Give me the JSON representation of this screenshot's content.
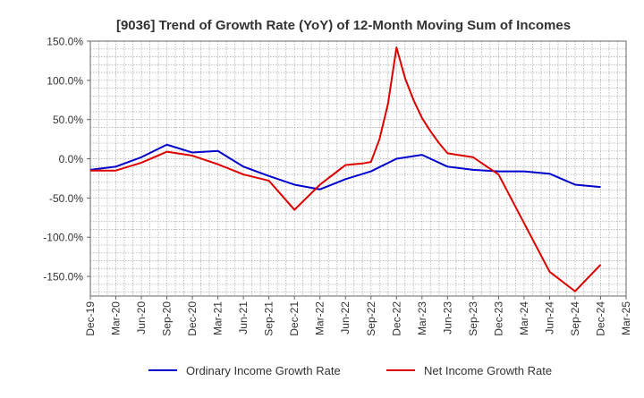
{
  "chart_data": {
    "type": "line",
    "title": "[9036]  Trend of Growth Rate (YoY) of 12-Month Moving Sum of Incomes",
    "xlabel": "",
    "ylabel": "",
    "ylim": [
      -175,
      150
    ],
    "y_ticks": [
      150,
      100,
      50,
      0,
      -50,
      -100,
      -150
    ],
    "y_tick_labels": [
      "150.0%",
      "100.0%",
      "50.0%",
      "0.0%",
      "-50.0%",
      "-100.0%",
      "-150.0%"
    ],
    "x_tick_labels": [
      "Dec-19",
      "Mar-20",
      "Jun-20",
      "Sep-20",
      "Dec-20",
      "Mar-21",
      "Jun-21",
      "Sep-21",
      "Dec-21",
      "Mar-22",
      "Jun-22",
      "Sep-22",
      "Dec-22",
      "Mar-23",
      "Jun-23",
      "Sep-23",
      "Dec-23",
      "Mar-24",
      "Jun-24",
      "Sep-24",
      "Dec-24",
      "Mar-25"
    ],
    "grid": true,
    "legend_position": "bottom",
    "series": [
      {
        "name": "Ordinary Income Growth Rate",
        "color": "#0000cc",
        "points": [
          [
            "Dec-19",
            -14
          ],
          [
            "Mar-20",
            -10
          ],
          [
            "Jun-20",
            2
          ],
          [
            "Sep-20",
            18
          ],
          [
            "Dec-20",
            8
          ],
          [
            "Mar-21",
            10
          ],
          [
            "Jun-21",
            -10
          ],
          [
            "Sep-21",
            -22
          ],
          [
            "Dec-21",
            -33
          ],
          [
            "Mar-22",
            -39
          ],
          [
            "Jun-22",
            -26
          ],
          [
            "Sep-22",
            -16
          ],
          [
            "Dec-22",
            0
          ],
          [
            "Mar-23",
            5
          ],
          [
            "Jun-23",
            -10
          ],
          [
            "Sep-23",
            -14
          ],
          [
            "Dec-23",
            -16
          ],
          [
            "Mar-24",
            -16
          ],
          [
            "Jun-24",
            -19
          ],
          [
            "Sep-24",
            -33
          ],
          [
            "Dec-24",
            -36
          ]
        ]
      },
      {
        "name": "Net Income Growth Rate",
        "color": "#dd0000",
        "points": [
          [
            "Dec-19",
            -15
          ],
          [
            "Mar-20",
            -15
          ],
          [
            "Jun-20",
            -5
          ],
          [
            "Sep-20",
            9
          ],
          [
            "Dec-20",
            4
          ],
          [
            "Mar-21",
            -7
          ],
          [
            "Jun-21",
            -20
          ],
          [
            "Sep-21",
            -28
          ],
          [
            "Dec-21",
            -65
          ],
          [
            "Mar-22",
            -33
          ],
          [
            "Jun-22",
            -8
          ],
          [
            "Aug-22",
            -6
          ],
          [
            "Sep-22",
            -4
          ],
          [
            "Oct-22",
            25
          ],
          [
            "Nov-22",
            70
          ],
          [
            "Dec-22",
            142
          ],
          [
            "Jan-23",
            103
          ],
          [
            "Feb-23",
            75
          ],
          [
            "Mar-23",
            52
          ],
          [
            "Apr-23",
            35
          ],
          [
            "May-23",
            20
          ],
          [
            "Jun-23",
            7
          ],
          [
            "Sep-23",
            2
          ],
          [
            "Dec-23",
            -20
          ],
          [
            "Mar-24",
            -82
          ],
          [
            "Jun-24",
            -144
          ],
          [
            "Sep-24",
            -169
          ],
          [
            "Dec-24",
            -135
          ]
        ]
      }
    ]
  }
}
